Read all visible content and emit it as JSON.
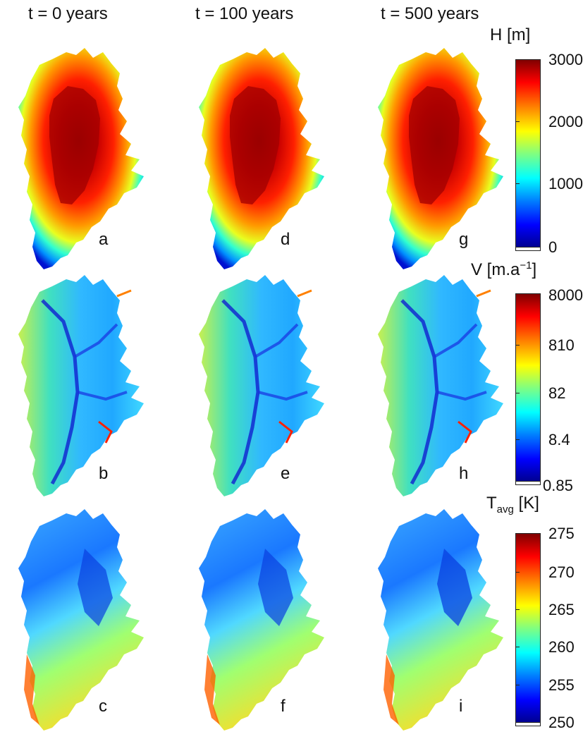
{
  "column_titles": [
    "t = 0 years",
    "t = 100 years",
    "t = 500 years"
  ],
  "panel_letters": {
    "row1": [
      "a",
      "d",
      "g"
    ],
    "row2": [
      "b",
      "e",
      "h"
    ],
    "row3": [
      "c",
      "f",
      "i"
    ]
  },
  "colorbars": {
    "thickness": {
      "title": "H [m]",
      "ticks": [
        "3000",
        "2000",
        "1000",
        "0"
      ]
    },
    "velocity": {
      "title_main": "V [m.a",
      "title_sup": "−1",
      "title_end": "]",
      "ticks": [
        "8000",
        "810",
        "82",
        "8.4",
        "0.85"
      ]
    },
    "temperature": {
      "title_main": "T",
      "title_sub": "avg",
      "title_end": " [K]",
      "ticks": [
        "275",
        "270",
        "265",
        "260",
        "255",
        "250"
      ]
    }
  },
  "colors": {
    "jet": [
      "#00008f",
      "#0000ff",
      "#0080ff",
      "#00ffff",
      "#80ff80",
      "#ffff00",
      "#ff8000",
      "#ff0000",
      "#800000"
    ]
  }
}
